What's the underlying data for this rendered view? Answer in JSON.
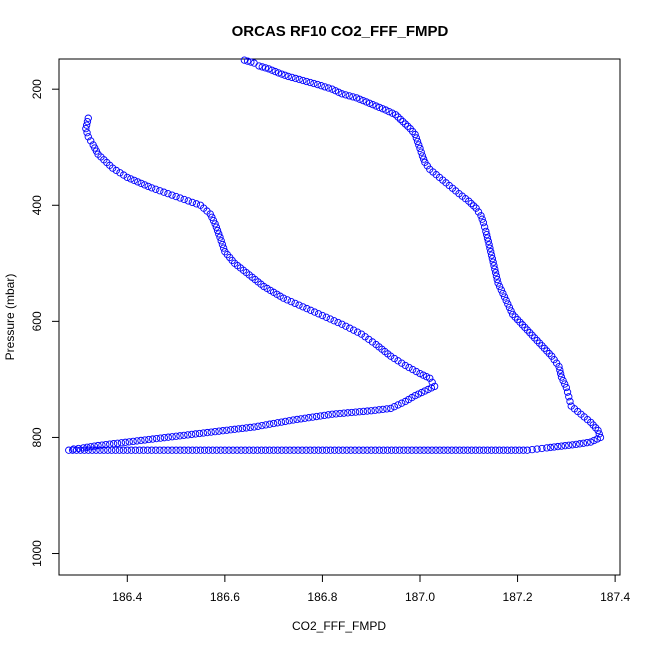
{
  "chart_data": {
    "type": "scatter",
    "title": "ORCAS RF10 CO2_FFF_FMPD",
    "xlabel": "CO2_FFF_FMPD",
    "ylabel": "Pressure (mbar)",
    "xlim": [
      186.26,
      187.41
    ],
    "ylim": [
      1037,
      148
    ],
    "y_reversed": true,
    "x_ticks": [
      "186.4",
      "186.6",
      "186.8",
      "187.0",
      "187.2",
      "187.4"
    ],
    "y_ticks": [
      "200",
      "400",
      "600",
      "800",
      "1000"
    ],
    "color": "#0000ff",
    "marker": "open-circle",
    "connector": "dashed line between consecutive points",
    "profile": [
      [
        186.64,
        150
      ],
      [
        186.66,
        155
      ],
      [
        186.67,
        160
      ],
      [
        186.69,
        165
      ],
      [
        186.71,
        172
      ],
      [
        186.73,
        178
      ],
      [
        186.76,
        185
      ],
      [
        186.79,
        192
      ],
      [
        186.82,
        200
      ],
      [
        186.84,
        208
      ],
      [
        186.87,
        215
      ],
      [
        186.89,
        222
      ],
      [
        186.91,
        229
      ],
      [
        186.93,
        236
      ],
      [
        186.95,
        244
      ],
      [
        186.96,
        252
      ],
      [
        186.97,
        260
      ],
      [
        186.98,
        268
      ],
      [
        186.99,
        278
      ],
      [
        186.995,
        290
      ],
      [
        187.0,
        302
      ],
      [
        187.005,
        315
      ],
      [
        187.01,
        326
      ],
      [
        187.02,
        338
      ],
      [
        187.04,
        352
      ],
      [
        187.06,
        366
      ],
      [
        187.08,
        380
      ],
      [
        187.1,
        393
      ],
      [
        187.115,
        405
      ],
      [
        187.125,
        418
      ],
      [
        187.13,
        430
      ],
      [
        187.135,
        445
      ],
      [
        187.14,
        462
      ],
      [
        187.145,
        480
      ],
      [
        187.15,
        498
      ],
      [
        187.155,
        516
      ],
      [
        187.16,
        534
      ],
      [
        187.17,
        552
      ],
      [
        187.18,
        570
      ],
      [
        187.19,
        588
      ],
      [
        187.21,
        606
      ],
      [
        187.23,
        624
      ],
      [
        187.25,
        642
      ],
      [
        187.27,
        660
      ],
      [
        187.285,
        678
      ],
      [
        187.29,
        696
      ],
      [
        187.3,
        714
      ],
      [
        187.305,
        730
      ],
      [
        187.31,
        746
      ],
      [
        187.33,
        760
      ],
      [
        187.35,
        774
      ],
      [
        187.365,
        788
      ],
      [
        187.37,
        800
      ],
      [
        187.35,
        808
      ],
      [
        187.32,
        812
      ],
      [
        187.29,
        815
      ],
      [
        187.26,
        818
      ],
      [
        187.24,
        820
      ],
      [
        187.22,
        822
      ],
      [
        187.0,
        822
      ],
      [
        186.8,
        822
      ],
      [
        186.6,
        822
      ],
      [
        186.4,
        822
      ],
      [
        186.28,
        822
      ],
      [
        186.29,
        820
      ],
      [
        186.31,
        818
      ],
      [
        186.34,
        814
      ],
      [
        186.38,
        810
      ],
      [
        186.42,
        806
      ],
      [
        186.46,
        802
      ],
      [
        186.5,
        798
      ],
      [
        186.54,
        794
      ],
      [
        186.58,
        790
      ],
      [
        186.62,
        786
      ],
      [
        186.66,
        782
      ],
      [
        186.7,
        776
      ],
      [
        186.74,
        770
      ],
      [
        186.78,
        765
      ],
      [
        186.82,
        760
      ],
      [
        186.86,
        757
      ],
      [
        186.9,
        754
      ],
      [
        186.94,
        750
      ],
      [
        186.97,
        738
      ],
      [
        186.99,
        728
      ],
      [
        187.01,
        720
      ],
      [
        187.03,
        712
      ],
      [
        187.02,
        698
      ],
      [
        187.0,
        690
      ],
      [
        186.97,
        676
      ],
      [
        186.94,
        660
      ],
      [
        186.91,
        640
      ],
      [
        186.88,
        622
      ],
      [
        186.84,
        605
      ],
      [
        186.8,
        590
      ],
      [
        186.76,
        575
      ],
      [
        186.72,
        560
      ],
      [
        186.68,
        540
      ],
      [
        186.65,
        520
      ],
      [
        186.62,
        500
      ],
      [
        186.6,
        480
      ],
      [
        186.59,
        455
      ],
      [
        186.58,
        432
      ],
      [
        186.57,
        415
      ],
      [
        186.55,
        400
      ],
      [
        186.5,
        385
      ],
      [
        186.45,
        370
      ],
      [
        186.4,
        352
      ],
      [
        186.37,
        336
      ],
      [
        186.34,
        312
      ],
      [
        186.33,
        296
      ],
      [
        186.32,
        282
      ],
      [
        186.315,
        268
      ],
      [
        186.32,
        250
      ]
    ]
  }
}
